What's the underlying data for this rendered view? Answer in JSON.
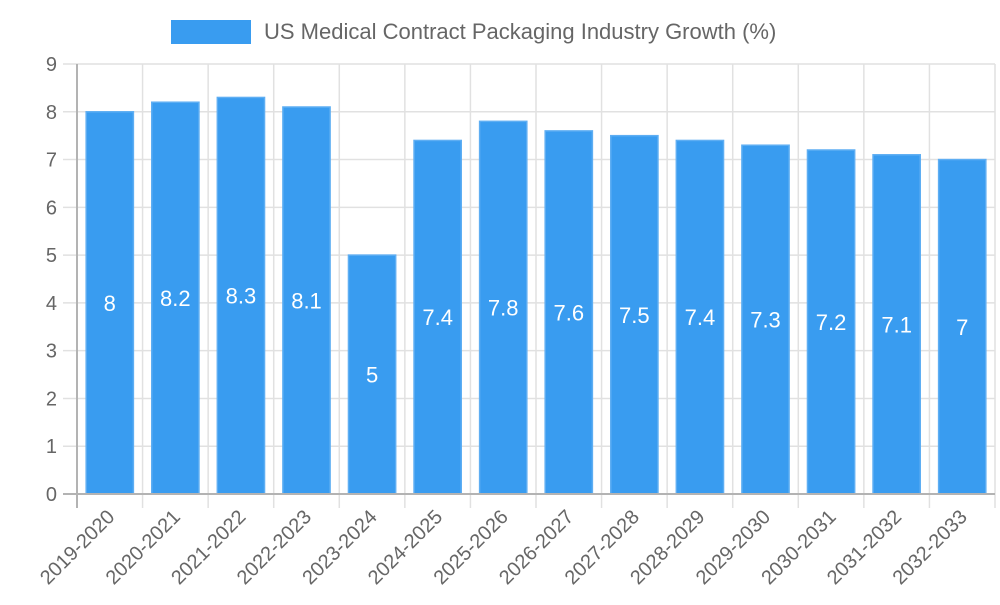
{
  "chart_data": {
    "type": "bar",
    "title": "",
    "xlabel": "",
    "ylabel": "",
    "categories": [
      "2019-2020",
      "2020-2021",
      "2021-2022",
      "2022-2023",
      "2023-2024",
      "2024-2025",
      "2025-2026",
      "2026-2027",
      "2027-2028",
      "2028-2029",
      "2029-2030",
      "2030-2031",
      "2031-2032",
      "2032-2033"
    ],
    "series": [
      {
        "name": "US Medical Contract Packaging Industry Growth (%)",
        "values": [
          8,
          8.2,
          8.3,
          8.1,
          5,
          7.4,
          7.8,
          7.6,
          7.5,
          7.4,
          7.3,
          7.2,
          7.1,
          7
        ],
        "data_labels": [
          "8",
          "8.2",
          "8.3",
          "8.1",
          "5",
          "7.4",
          "7.8",
          "7.6",
          "7.5",
          "7.4",
          "7.3",
          "7.2",
          "7.1",
          "7"
        ],
        "color": "#399cf0",
        "border_color": "#5eaef3"
      }
    ],
    "ylim": [
      0,
      9
    ],
    "yticks": [
      "0",
      "1",
      "2",
      "3",
      "4",
      "5",
      "6",
      "7",
      "8",
      "9"
    ],
    "grid": true,
    "legend": {
      "position": "top-center",
      "entries": [
        "US Medical Contract Packaging Industry Growth (%)"
      ]
    },
    "data_label_position": "center",
    "x_tick_rotation_deg": -45
  },
  "colors": {
    "text": "#666666",
    "grid": "#e1e1e1",
    "axis": "#b3b3b3",
    "data_label": "#ffffff"
  }
}
